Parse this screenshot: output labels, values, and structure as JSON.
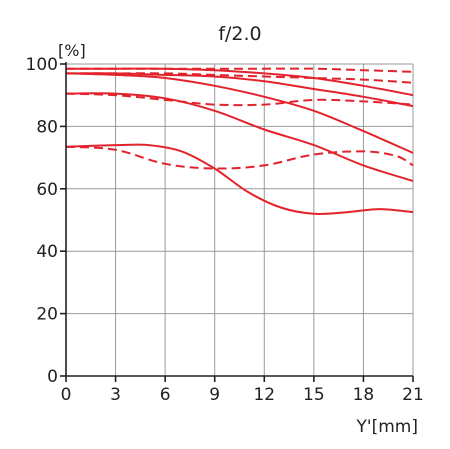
{
  "chart_data": {
    "type": "line",
    "title": "f/2.0",
    "ylabel_unit": "[%]",
    "xlabel": "Y'[mm]",
    "xlim": [
      0,
      21
    ],
    "ylim": [
      0,
      100
    ],
    "x_ticks": [
      0,
      3,
      6,
      9,
      12,
      15,
      18,
      21
    ],
    "y_ticks": [
      0,
      20,
      40,
      60,
      80,
      100
    ],
    "grid": true,
    "color": "#e3232c",
    "series": [
      {
        "style": "solid",
        "x": [
          0,
          3,
          6,
          9,
          12,
          15,
          18,
          21
        ],
        "y": [
          98.5,
          98.5,
          98.5,
          98,
          97,
          95.5,
          93,
          90
        ]
      },
      {
        "style": "dashed",
        "x": [
          0,
          3,
          6,
          9,
          12,
          15,
          18,
          21
        ],
        "y": [
          98.5,
          98.5,
          98.5,
          98.5,
          98.5,
          98.5,
          98,
          97.5
        ]
      },
      {
        "style": "solid",
        "x": [
          0,
          3,
          6,
          9,
          12,
          15,
          18,
          21
        ],
        "y": [
          97,
          97,
          96.5,
          96,
          94.5,
          92,
          89.5,
          86.5
        ]
      },
      {
        "style": "dashed",
        "x": [
          0,
          3,
          6,
          9,
          12,
          15,
          18,
          21
        ],
        "y": [
          97,
          97,
          97,
          96.5,
          96,
          95.5,
          95,
          94
        ]
      },
      {
        "style": "solid",
        "x": [
          0,
          3,
          6,
          9,
          12,
          15,
          18,
          21
        ],
        "y": [
          90.5,
          90.5,
          89,
          85,
          79,
          74,
          67.5,
          62.5
        ]
      },
      {
        "style": "dashed",
        "x": [
          0,
          3,
          6,
          9,
          12,
          15,
          18,
          21
        ],
        "y": [
          90.5,
          90,
          88.5,
          87,
          87,
          88.5,
          88,
          87
        ]
      },
      {
        "style": "solid",
        "x": [
          0,
          3,
          6,
          9,
          12,
          15,
          18,
          21
        ],
        "y": [
          97,
          96.5,
          95.5,
          93,
          89.5,
          85,
          78.5,
          71.5
        ]
      },
      {
        "style": "solid",
        "x": [
          0,
          3,
          5,
          7,
          9,
          11,
          13,
          15,
          17,
          19,
          21
        ],
        "y": [
          73.5,
          74,
          74,
          72,
          66.5,
          59,
          54,
          52,
          52.5,
          53.5,
          52.5
        ]
      },
      {
        "style": "dashed",
        "x": [
          0,
          3,
          6,
          9,
          12,
          15,
          18,
          20,
          21
        ],
        "y": [
          73.5,
          72.5,
          68,
          66.5,
          67.5,
          71,
          72,
          70.5,
          67.5
        ]
      }
    ]
  }
}
